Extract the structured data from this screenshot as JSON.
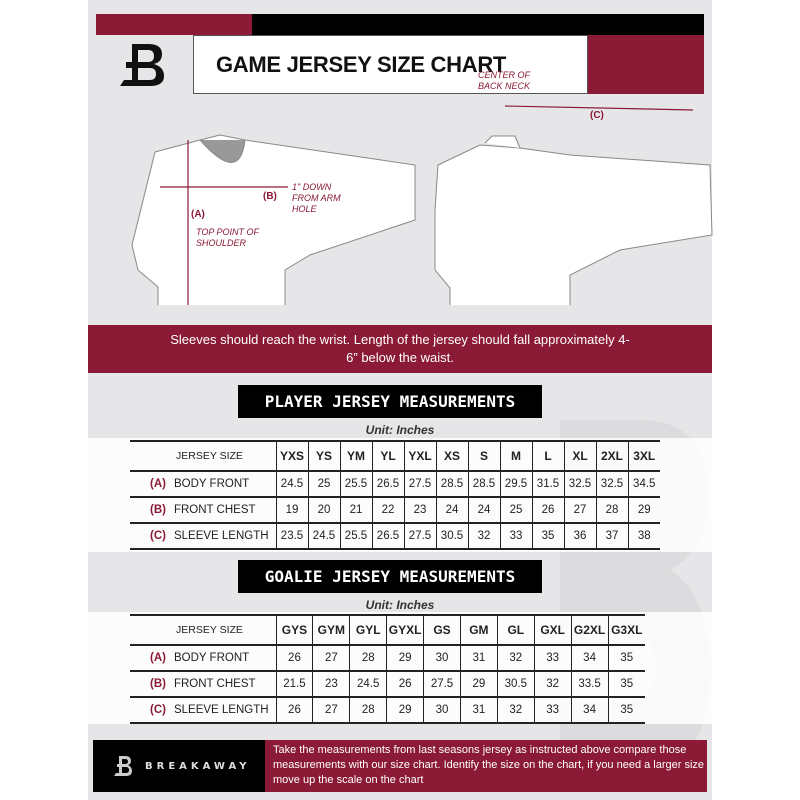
{
  "header": {
    "title": "GAME JERSEY SIZE CHART",
    "logo_text": "B"
  },
  "diagram": {
    "center_back_neck": "CENTER OF BACK NECK",
    "label_c": "(C)",
    "label_b": "(B)",
    "label_a": "(A)",
    "down_from_arm_hole": "1\" DOWN FROM ARM HOLE",
    "top_point_shoulder": "TOP POINT OF SHOULDER"
  },
  "banner": {
    "text": "Sleeves should reach the wrist. Length of the jersey should fall approximately 4-6” below the waist."
  },
  "player": {
    "title": "PLAYER JERSEY MEASUREMENTS",
    "unit": "Unit: Inches",
    "size_label": "JERSEY SIZE",
    "sizes": [
      "YXS",
      "YS",
      "YM",
      "YL",
      "YXL",
      "XS",
      "S",
      "M",
      "L",
      "XL",
      "2XL",
      "3XL"
    ],
    "rows": [
      {
        "code": "(A)",
        "name": "BODY FRONT",
        "values": [
          "24.5",
          "25",
          "25.5",
          "26.5",
          "27.5",
          "28.5",
          "28.5",
          "29.5",
          "31.5",
          "32.5",
          "32.5",
          "34.5"
        ]
      },
      {
        "code": "(B)",
        "name": "FRONT CHEST",
        "values": [
          "19",
          "20",
          "21",
          "22",
          "23",
          "24",
          "24",
          "25",
          "26",
          "27",
          "28",
          "29"
        ]
      },
      {
        "code": "(C)",
        "name": "SLEEVE LENGTH",
        "values": [
          "23.5",
          "24.5",
          "25.5",
          "26.5",
          "27.5",
          "30.5",
          "32",
          "33",
          "35",
          "36",
          "37",
          "38"
        ]
      }
    ]
  },
  "goalie": {
    "title": "GOALIE JERSEY MEASUREMENTS",
    "unit": "Unit: Inches",
    "size_label": "JERSEY SIZE",
    "sizes": [
      "GYS",
      "GYM",
      "GYL",
      "GYXL",
      "GS",
      "GM",
      "GL",
      "GXL",
      "G2XL",
      "G3XL"
    ],
    "rows": [
      {
        "code": "(A)",
        "name": "BODY FRONT",
        "values": [
          "26",
          "27",
          "28",
          "29",
          "30",
          "31",
          "32",
          "33",
          "34",
          "35"
        ]
      },
      {
        "code": "(B)",
        "name": "FRONT CHEST",
        "values": [
          "21.5",
          "23",
          "24.5",
          "26",
          "27.5",
          "29",
          "30.5",
          "32",
          "33.5",
          "35"
        ]
      },
      {
        "code": "(C)",
        "name": "SLEEVE LENGTH",
        "values": [
          "26",
          "27",
          "28",
          "29",
          "30",
          "31",
          "32",
          "33",
          "34",
          "35"
        ]
      }
    ]
  },
  "footer": {
    "brand": "BREAKAWAY",
    "text": "Take the measurements from last seasons jersey as instructed above compare those measurements  with our size chart. Identify the size on the chart, if you need a larger size move up the scale on the chart"
  },
  "colors": {
    "maroon": "#8a1a35",
    "black": "#000000",
    "background": "#e6e6e8"
  }
}
